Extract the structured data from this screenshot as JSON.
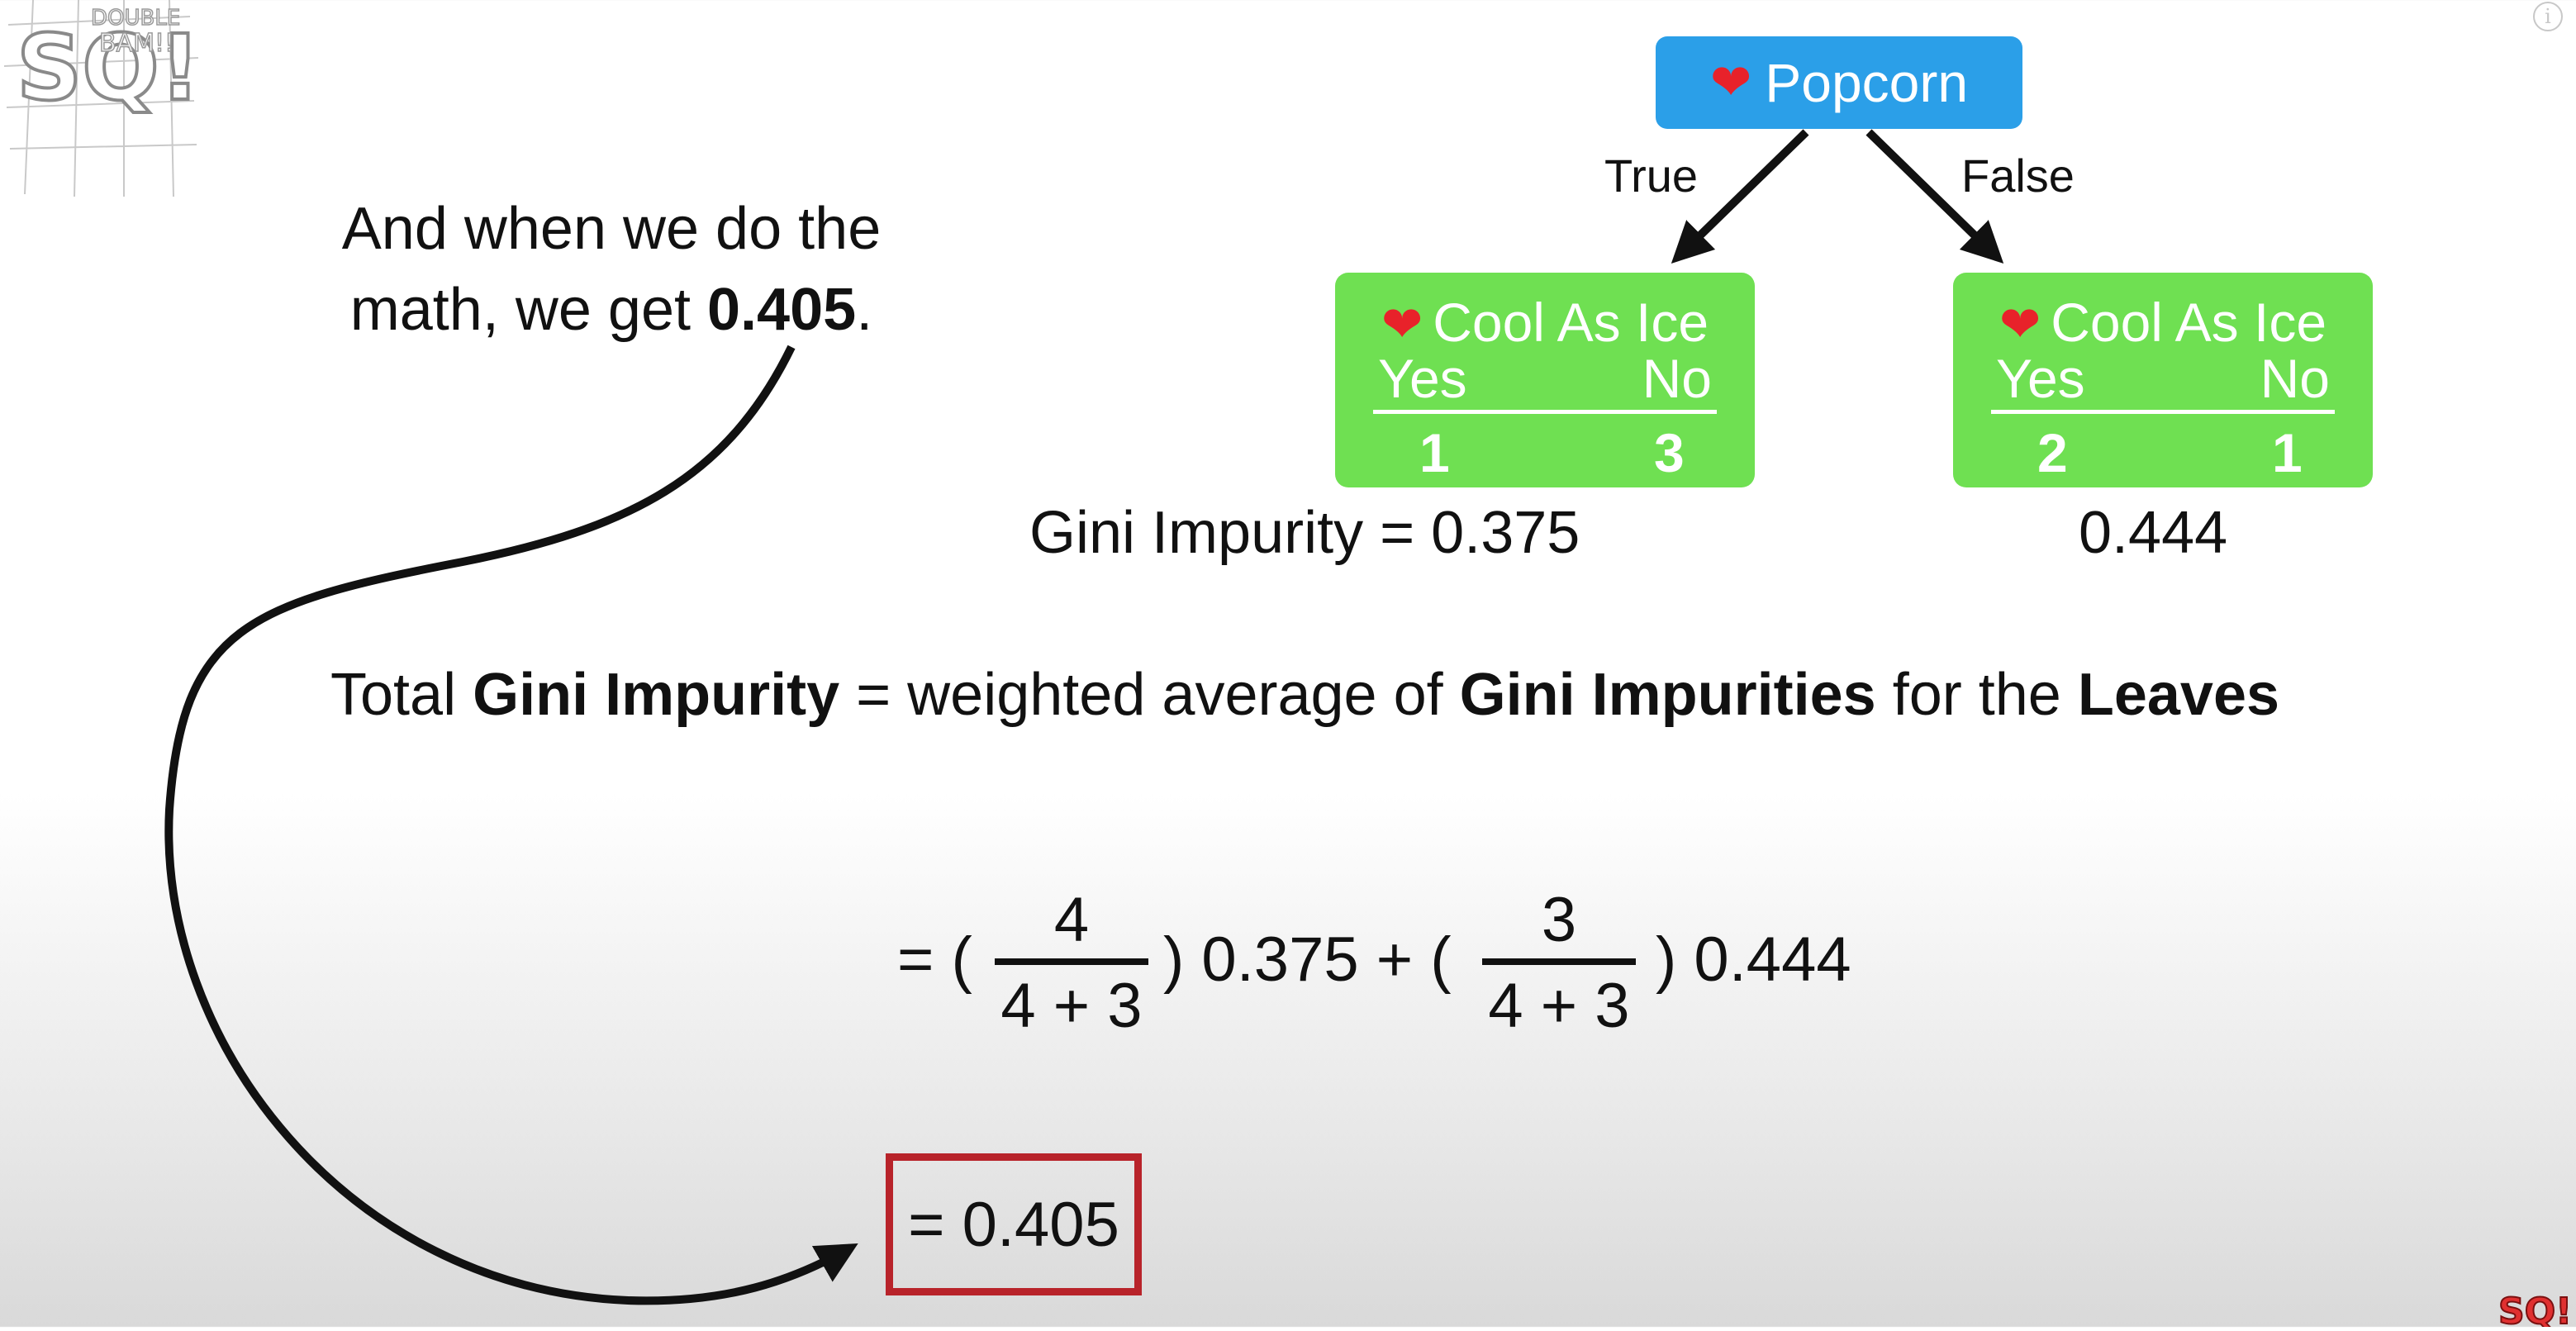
{
  "logo": {
    "text_top": "DOUBLE",
    "text_bottom": "BAM!!",
    "letters": "SQ!"
  },
  "caption": {
    "line1": "And when we do the",
    "line2_prefix": "math, we get ",
    "line2_value": "0.405",
    "line2_suffix": "."
  },
  "tree": {
    "root": {
      "label": "Popcorn",
      "icon": "heart-icon"
    },
    "true_label": "True",
    "false_label": "False",
    "left_leaf": {
      "title": "Cool As Ice",
      "yes_label": "Yes",
      "no_label": "No",
      "yes_count": "1",
      "no_count": "3",
      "gini": "Gini Impurity = 0.375"
    },
    "right_leaf": {
      "title": "Cool As Ice",
      "yes_label": "Yes",
      "no_label": "No",
      "yes_count": "2",
      "no_count": "1",
      "gini": "0.444"
    }
  },
  "definition": {
    "p1": "Total ",
    "b1": "Gini Impurity",
    "p2": " = weighted average of ",
    "b2": "Gini Impurities",
    "p3": " for the ",
    "b3": "Leaves"
  },
  "equation": {
    "open1": "= (",
    "frac1_num": "4",
    "frac1_den": "4 + 3",
    "mid": ") 0.375 + (",
    "frac2_num": "3",
    "frac2_den": "4 + 3",
    "end": ") 0.444"
  },
  "result": "= 0.405",
  "colors": {
    "root_node": "#2b9fe8",
    "leaf_node": "#6fe052",
    "heart": "#e8222a",
    "result_border": "#b8232a"
  }
}
